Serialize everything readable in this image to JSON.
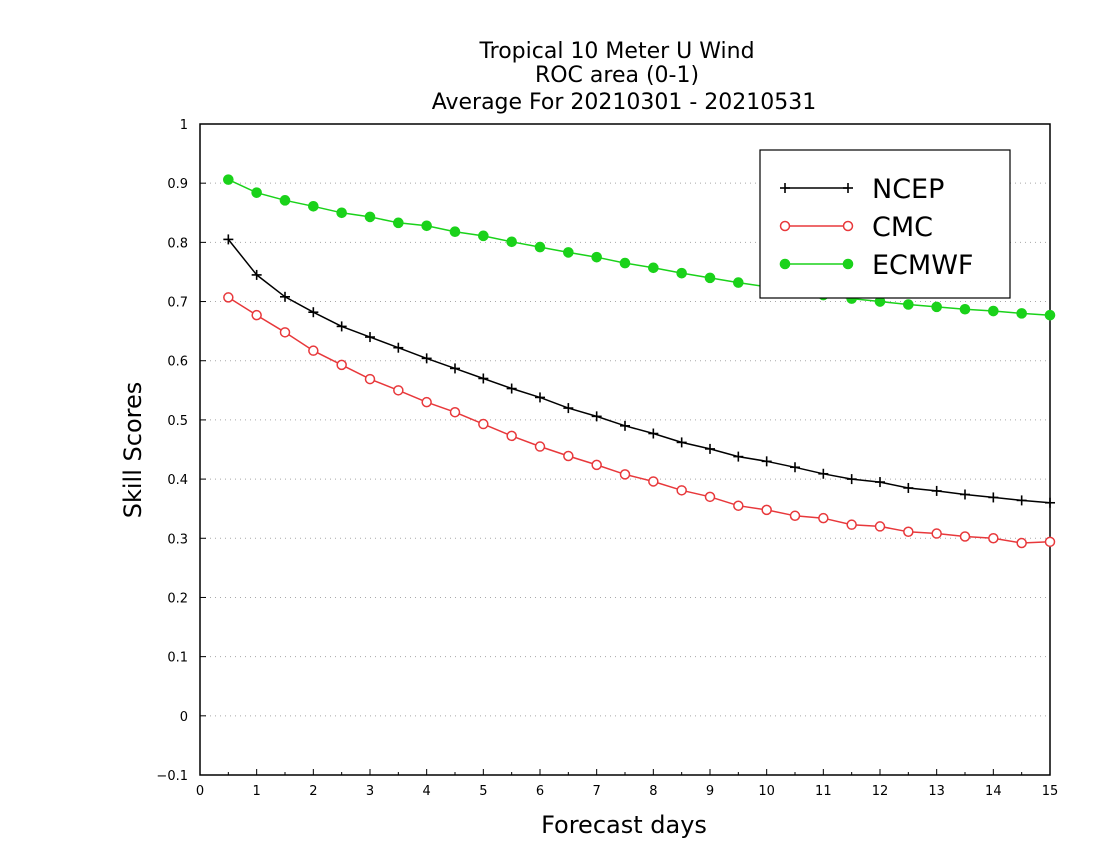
{
  "chart_data": {
    "type": "line",
    "title_lines": [
      "Tropical 10 Meter U Wind",
      "ROC area (0-1)",
      "Average For 20210301 - 20210531"
    ],
    "xlabel": "Forecast days",
    "ylabel": "Skill Scores",
    "xlim": [
      0,
      15
    ],
    "ylim": [
      -0.1,
      1
    ],
    "x_ticks": [
      0,
      1,
      2,
      3,
      4,
      5,
      6,
      7,
      8,
      9,
      10,
      11,
      12,
      13,
      14,
      15
    ],
    "y_ticks": [
      -0.1,
      0,
      0.1,
      0.2,
      0.3,
      0.4,
      0.5,
      0.6,
      0.7,
      0.8,
      0.9,
      1
    ],
    "y_tick_labels": [
      "−0.1",
      "0",
      "0.1",
      "0.2",
      "0.3",
      "0.4",
      "0.5",
      "0.6",
      "0.7",
      "0.8",
      "0.9",
      "1"
    ],
    "grid": "horizontal dotted",
    "legend_position": "top-right",
    "x": [
      0.5,
      1,
      1.5,
      2,
      2.5,
      3,
      3.5,
      4,
      4.5,
      5,
      5.5,
      6,
      6.5,
      7,
      7.5,
      8,
      8.5,
      9,
      9.5,
      10,
      10.5,
      11,
      11.5,
      12,
      12.5,
      13,
      13.5,
      14,
      14.5,
      15
    ],
    "series": [
      {
        "name": "NCEP",
        "color": "#000000",
        "marker": "plus",
        "values": [
          0.805,
          0.745,
          0.708,
          0.682,
          0.658,
          0.64,
          0.622,
          0.604,
          0.587,
          0.57,
          0.553,
          0.538,
          0.52,
          0.506,
          0.49,
          0.477,
          0.462,
          0.451,
          0.438,
          0.43,
          0.42,
          0.409,
          0.4,
          0.395,
          0.385,
          0.38,
          0.374,
          0.369,
          0.364,
          0.36
        ]
      },
      {
        "name": "CMC",
        "color": "#e8383b",
        "marker": "open-circle",
        "values": [
          0.707,
          0.677,
          0.648,
          0.617,
          0.593,
          0.569,
          0.55,
          0.53,
          0.513,
          0.493,
          0.473,
          0.455,
          0.439,
          0.424,
          0.408,
          0.396,
          0.381,
          0.37,
          0.355,
          0.348,
          0.338,
          0.334,
          0.323,
          0.32,
          0.311,
          0.308,
          0.303,
          0.3,
          0.292,
          0.294
        ]
      },
      {
        "name": "ECMWF",
        "color": "#1ad21a",
        "marker": "filled-circle",
        "values": [
          0.906,
          0.884,
          0.871,
          0.861,
          0.85,
          0.843,
          0.833,
          0.828,
          0.818,
          0.811,
          0.801,
          0.792,
          0.783,
          0.775,
          0.765,
          0.757,
          0.748,
          0.74,
          0.732,
          0.725,
          0.718,
          0.711,
          0.705,
          0.7,
          0.695,
          0.691,
          0.687,
          0.684,
          0.68,
          0.677
        ]
      }
    ]
  }
}
